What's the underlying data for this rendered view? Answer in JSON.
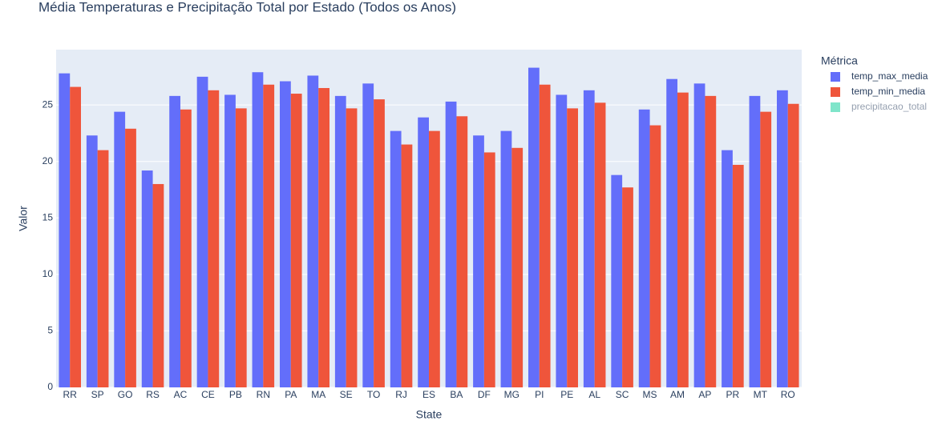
{
  "chart_data": {
    "type": "bar",
    "title": "Média Temperaturas e Precipitação Total por Estado (Todos os Anos)",
    "x_label": "State",
    "y_label": "Valor",
    "legend_title": "Métrica",
    "legend_position": "right",
    "categories": [
      "RR",
      "SP",
      "GO",
      "RS",
      "AC",
      "CE",
      "PB",
      "RN",
      "PA",
      "MA",
      "SE",
      "TO",
      "RJ",
      "ES",
      "BA",
      "DF",
      "MG",
      "PI",
      "PE",
      "AL",
      "SC",
      "MS",
      "AM",
      "AP",
      "PR",
      "MT",
      "RO"
    ],
    "series": [
      {
        "name": "temp_max_media",
        "color": "#636efa",
        "values": [
          27.8,
          22.3,
          24.4,
          19.2,
          25.8,
          27.5,
          25.9,
          27.9,
          27.1,
          27.6,
          25.8,
          26.9,
          22.7,
          23.9,
          25.3,
          22.3,
          22.7,
          28.3,
          25.9,
          26.3,
          18.8,
          24.6,
          27.3,
          26.9,
          21.0,
          25.8,
          26.3
        ]
      },
      {
        "name": "temp_min_media",
        "color": "#EF553B",
        "values": [
          26.6,
          21.0,
          22.9,
          18.0,
          24.6,
          26.3,
          24.7,
          26.8,
          26.0,
          26.5,
          24.7,
          25.5,
          21.5,
          22.7,
          24.0,
          20.8,
          21.2,
          26.8,
          24.7,
          25.2,
          17.7,
          23.2,
          26.1,
          25.8,
          19.7,
          24.4,
          25.1
        ]
      },
      {
        "name": "precipitacao_total",
        "color": "#00cc96",
        "visible": "legendonly"
      }
    ],
    "ylim": [
      0,
      29.9
    ],
    "yticks": [
      0,
      5,
      10,
      15,
      20,
      25
    ],
    "grid": true
  }
}
